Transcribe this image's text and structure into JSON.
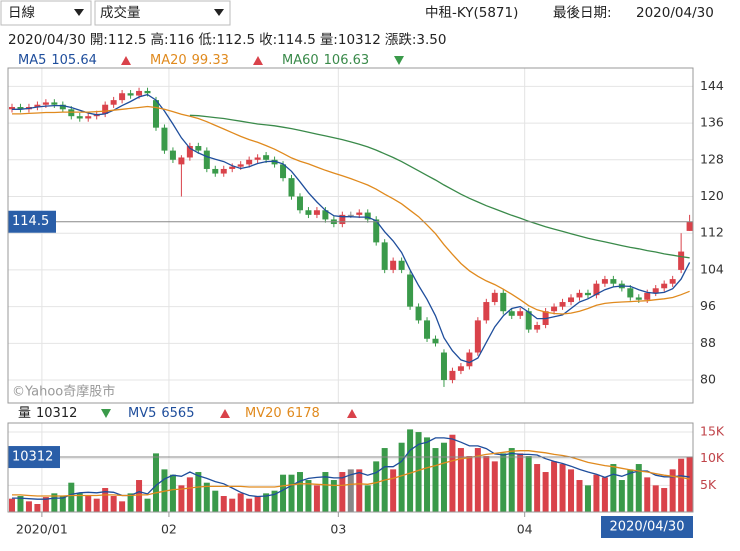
{
  "controls": {
    "period": "日線",
    "indicator": "成交量"
  },
  "stock": "中租-KY(5871)",
  "last_date_label": "最後日期:",
  "quote": {
    "labels": [
      "開:",
      "高:",
      "低:",
      "收:",
      "量:"
    ],
    "change_label": "漲跌:",
    "change": {
      "value": 3.5,
      "label": "3.50"
    }
  },
  "watermark": "©Yahoo奇摩股市",
  "chart_data": [
    {
      "type": "candlestick",
      "up_color": "#d9424a",
      "down_color": "#3a9a4a",
      "flat_color": "#888888",
      "grid": true,
      "categories": [
        null,
        null,
        null,
        null,
        "2020/01",
        null,
        null,
        null,
        null,
        null,
        null,
        null,
        null,
        null,
        null,
        null,
        null,
        null,
        null,
        "02",
        null,
        null,
        null,
        null,
        null,
        null,
        null,
        null,
        null,
        null,
        null,
        null,
        null,
        null,
        null,
        null,
        null,
        null,
        null,
        "03",
        null,
        null,
        null,
        null,
        null,
        null,
        null,
        null,
        null,
        null,
        null,
        null,
        null,
        null,
        null,
        null,
        null,
        null,
        null,
        null,
        null,
        "04",
        null,
        null,
        null,
        null,
        null,
        null,
        null,
        null,
        null,
        null,
        null,
        null,
        null,
        null,
        null,
        null,
        null,
        null,
        "2020/04/30"
      ],
      "open": [
        139,
        139.5,
        139,
        139.5,
        140,
        140.5,
        140,
        139,
        137.5,
        137,
        137.5,
        138,
        140,
        141,
        142.5,
        142,
        143,
        141,
        135,
        130,
        127,
        128.5,
        131,
        130,
        126,
        125,
        126,
        126.5,
        127,
        128,
        129,
        128,
        127,
        124,
        120,
        117,
        116,
        117,
        115,
        114,
        116,
        116,
        116.5,
        115,
        110,
        104,
        106,
        103,
        96,
        93,
        89,
        86,
        80,
        82,
        83,
        86,
        93,
        97,
        99,
        95,
        94,
        95,
        91,
        92,
        95,
        96,
        97,
        98,
        99,
        98.5,
        101,
        102,
        101,
        100,
        98,
        97.5,
        99,
        100,
        101,
        104,
        112.5
      ],
      "high": [
        140.2,
        140.2,
        140.2,
        140.7,
        141.2,
        141.2,
        140.7,
        139.7,
        138.2,
        138.2,
        138.7,
        140.7,
        141.7,
        143.2,
        143.2,
        143.7,
        143.7,
        141.7,
        135.7,
        130.7,
        129,
        131.7,
        131.7,
        130.7,
        126.7,
        126.7,
        127.2,
        127.7,
        128.7,
        129.2,
        129.7,
        128.7,
        127.7,
        124.7,
        120.7,
        117.7,
        117.7,
        117.7,
        115.7,
        116.7,
        116.7,
        117.2,
        117.2,
        115.7,
        110.7,
        106.7,
        106.7,
        103.7,
        96.7,
        93.7,
        89.7,
        86.7,
        82.7,
        83.7,
        86.7,
        93.7,
        97.7,
        99.7,
        99.7,
        95.7,
        95.7,
        95.7,
        92.7,
        95.7,
        96.7,
        97.7,
        98.7,
        99.7,
        99.7,
        101.7,
        102.7,
        102.7,
        101.7,
        100.7,
        98.7,
        99.7,
        100.7,
        101.7,
        102.7,
        112,
        116
      ],
      "low": [
        138.3,
        138.3,
        138.3,
        138.8,
        139.3,
        139.3,
        138.3,
        136.8,
        136.3,
        136.3,
        136.8,
        137.3,
        139.3,
        140.3,
        141.3,
        141.3,
        141.8,
        134.3,
        129.3,
        127.3,
        120,
        127.8,
        129.3,
        125.3,
        124.3,
        124.3,
        125.3,
        125.8,
        126.3,
        127.3,
        127.3,
        126.3,
        123.3,
        119.3,
        116.3,
        115.3,
        115.3,
        114.3,
        113.3,
        113.3,
        115.3,
        115.3,
        114.3,
        109.3,
        103.3,
        103.3,
        103.3,
        95.3,
        92.3,
        88.3,
        87.3,
        78.5,
        79.3,
        81.3,
        82.3,
        85.3,
        92.3,
        96.3,
        94.3,
        93.3,
        93.3,
        90.3,
        90.3,
        91.3,
        94.3,
        95.3,
        96.3,
        97.3,
        97.8,
        97.8,
        100.3,
        100.3,
        99.3,
        97.3,
        96.8,
        96.8,
        98.3,
        99.3,
        100.3,
        103.3,
        112.5
      ],
      "close": [
        139.5,
        139,
        139.5,
        140,
        140.5,
        140,
        139,
        137.5,
        137,
        137.5,
        138,
        140,
        141,
        142.5,
        142,
        143,
        142.5,
        135,
        130,
        128,
        128.5,
        131,
        130,
        126,
        125,
        126,
        126.5,
        127,
        128,
        128.5,
        128,
        127,
        124,
        120,
        117,
        116,
        117,
        115,
        114,
        116,
        116,
        116.5,
        115,
        110,
        104,
        106,
        104,
        96,
        93,
        89,
        88,
        80,
        82,
        83,
        86,
        93,
        97,
        99,
        95,
        94,
        95,
        91,
        92,
        95,
        96,
        97,
        98,
        99,
        98.5,
        101,
        102,
        101,
        100,
        98,
        97.5,
        99,
        100,
        101,
        102,
        108,
        114.5
      ],
      "series": [
        {
          "name": "MA5",
          "color": "#1f4e9c",
          "values": [
            139,
            139,
            139.2,
            139.5,
            139.7,
            139.8,
            139.8,
            139.4,
            138.8,
            138.2,
            137.8,
            138,
            138.8,
            139.8,
            140.7,
            141.7,
            142.2,
            141,
            138.6,
            135.8,
            132.8,
            130.5,
            129.5,
            128.7,
            128.1,
            127.6,
            126.7,
            126.1,
            126.5,
            127.2,
            127.6,
            127.7,
            127.1,
            125.5,
            123.2,
            120.8,
            118.8,
            117,
            115.8,
            115.6,
            115.6,
            115.5,
            115.5,
            114.7,
            112.3,
            110.3,
            107.8,
            104,
            100.6,
            97.6,
            94,
            89.2,
            86.4,
            84.4,
            83.8,
            84.8,
            88.2,
            91.6,
            94,
            95.6,
            96,
            94.8,
            93.4,
            93.4,
            93.8,
            94.2,
            95.6,
            97,
            97.7,
            98.7,
            99.7,
            100.3,
            100.5,
            100.4,
            99.7,
            99.1,
            98.9,
            99.1,
            99.9,
            102,
            105.64
          ]
        },
        {
          "name": "MA20",
          "color": "#e08a1e",
          "values": [
            138,
            138,
            138.1,
            138.2,
            138.3,
            138.3,
            138.4,
            138.4,
            138.4,
            138.4,
            138.5,
            138.6,
            138.8,
            139,
            139.2,
            139.4,
            139.6,
            139.4,
            139,
            138.5,
            137.9,
            137.5,
            137,
            136.3,
            135.5,
            134.7,
            133.9,
            133.1,
            132.4,
            131.8,
            131.1,
            130.3,
            129.4,
            128.4,
            127.7,
            127.1,
            126.4,
            125.7,
            125.1,
            124.5,
            123.9,
            123.2,
            122.5,
            121.6,
            120.5,
            119.5,
            118.4,
            117,
            115.6,
            113.8,
            111.9,
            109.5,
            107.4,
            105.4,
            103.8,
            102.6,
            101.6,
            100.8,
            99.8,
            98.7,
            97.5,
            96.2,
            95.3,
            94.8,
            94.5,
            94.4,
            94.6,
            95,
            95.6,
            96.3,
            96.7,
            96.9,
            97,
            97.1,
            97.2,
            97.3,
            97.5,
            97.7,
            98,
            98.6,
            99.33
          ]
        },
        {
          "name": "MA60",
          "color": "#3a8a4a",
          "values": [
            null,
            null,
            null,
            null,
            null,
            null,
            null,
            null,
            null,
            null,
            null,
            null,
            null,
            null,
            null,
            null,
            null,
            null,
            null,
            null,
            null,
            137.7,
            137.6,
            137.4,
            137.2,
            137,
            136.7,
            136.4,
            136.1,
            135.8,
            135.6,
            135.4,
            135.1,
            134.8,
            134.4,
            134,
            133.6,
            133.2,
            132.8,
            132.4,
            131.9,
            131.4,
            130.8,
            130.1,
            129.3,
            128.5,
            127.6,
            126.6,
            125.6,
            124.6,
            123.6,
            122.5,
            121.5,
            120.5,
            119.6,
            118.8,
            118,
            117.3,
            116.6,
            115.9,
            115.3,
            114.6,
            114,
            113.4,
            112.9,
            112.4,
            111.9,
            111.4,
            110.9,
            110.5,
            110.1,
            109.7,
            109.3,
            108.9,
            108.6,
            108.2,
            107.9,
            107.5,
            107.2,
            106.9,
            106.63
          ]
        }
      ],
      "ylim": [
        75,
        148
      ],
      "yticks": [
        80,
        88,
        96,
        104,
        112,
        120,
        128,
        136,
        144
      ]
    },
    {
      "type": "bar",
      "label": "量",
      "grid": true,
      "values": [
        2500,
        3000,
        2000,
        1500,
        2800,
        3500,
        3000,
        5500,
        3500,
        3000,
        2500,
        4500,
        3000,
        2000,
        3500,
        6000,
        2500,
        11000,
        8000,
        7000,
        5000,
        6500,
        7500,
        5500,
        4000,
        3000,
        2500,
        3500,
        2500,
        3000,
        3500,
        4000,
        7000,
        7000,
        7500,
        6000,
        5000,
        7500,
        6000,
        7500,
        8000,
        8000,
        5000,
        9500,
        12000,
        8000,
        13000,
        15500,
        15000,
        14000,
        12000,
        13000,
        14500,
        12000,
        10500,
        12000,
        10500,
        9500,
        11000,
        12000,
        11000,
        10500,
        9000,
        7500,
        9500,
        9000,
        8000,
        6000,
        5000,
        7000,
        6500,
        9000,
        6000,
        8000,
        9000,
        6500,
        5000,
        4500,
        8000,
        10000,
        10312
      ],
      "series": [
        {
          "name": "MV5",
          "color": "#1f4e9c",
          "values": [
            2600,
            2600,
            2500,
            2400,
            2400,
            2600,
            2600,
            3300,
            3600,
            3700,
            3600,
            3800,
            3700,
            3100,
            3100,
            3800,
            3400,
            5000,
            6200,
            6900,
            6700,
            7500,
            6800,
            6300,
            5700,
            5300,
            4500,
            3700,
            3100,
            2900,
            3000,
            3300,
            4100,
            5000,
            5800,
            6300,
            6500,
            6600,
            6400,
            6400,
            7000,
            7400,
            6900,
            7400,
            8500,
            8500,
            9500,
            11600,
            12700,
            13100,
            13900,
            13900,
            13700,
            13100,
            12400,
            12400,
            11900,
            10900,
            10700,
            11000,
            10800,
            10800,
            10700,
            10000,
            9500,
            9100,
            8600,
            8000,
            7500,
            7100,
            6500,
            7100,
            6700,
            7300,
            7700,
            7700,
            6900,
            6600,
            6600,
            6800,
            6565
          ]
        },
        {
          "name": "MV20",
          "color": "#e08a1e",
          "values": [
            3200,
            3200,
            3100,
            3000,
            3000,
            3000,
            3000,
            3100,
            3100,
            3100,
            3100,
            3200,
            3200,
            3100,
            3100,
            3200,
            3200,
            3600,
            3900,
            4200,
            4300,
            4500,
            4700,
            4800,
            4800,
            4800,
            4800,
            4800,
            4700,
            4700,
            4700,
            4700,
            4900,
            5100,
            5300,
            5300,
            5200,
            5100,
            5000,
            5000,
            5200,
            5300,
            5200,
            5500,
            6000,
            6300,
            6800,
            7300,
            7800,
            8300,
            8700,
            9200,
            9600,
            10000,
            10200,
            10500,
            10800,
            11000,
            11200,
            11400,
            11500,
            11500,
            11300,
            11100,
            10800,
            10600,
            10300,
            9800,
            9300,
            9000,
            8700,
            8500,
            8200,
            7900,
            7700,
            7500,
            7200,
            6900,
            6700,
            6500,
            6178
          ]
        }
      ],
      "ylim": [
        0,
        16700
      ],
      "yticks": [
        {
          "value": 5000,
          "label": "5K"
        },
        {
          "value": 10000,
          "label": "10K"
        },
        {
          "value": 15000,
          "label": "15K"
        }
      ]
    }
  ]
}
